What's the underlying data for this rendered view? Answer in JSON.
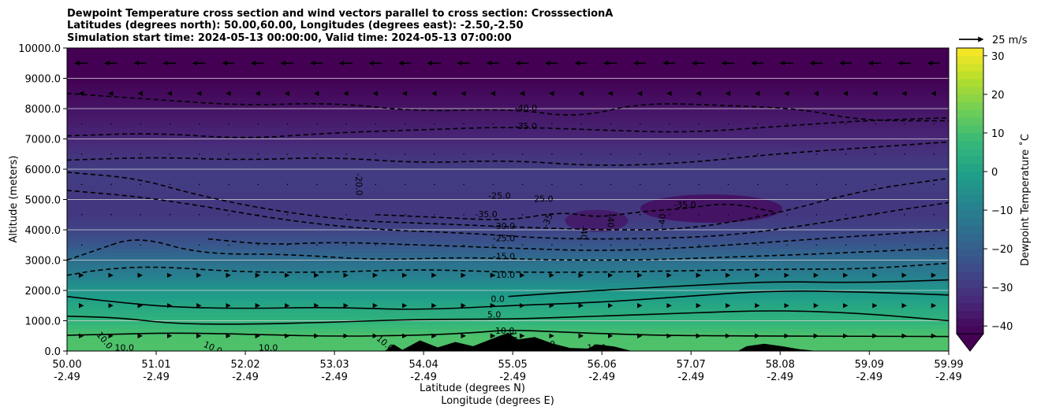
{
  "chart_data": {
    "type": "heatmap",
    "title_lines": [
      "Dewpoint Temperature cross section and wind vectors parallel to cross section: CrosssectionA",
      "Latitudes (degrees north): 50.00,60.00, Longitudes (degrees east): -2.50,-2.50",
      "Simulation start time: 2024-05-13 00:00:00, Valid time: 2024-05-13 07:00:00"
    ],
    "xlabel": "Latitude (degrees N)",
    "xlabel2": "Longitude (degrees E)",
    "ylabel": "Altitude (meters)",
    "xlim": [
      50.0,
      59.99
    ],
    "ylim": [
      0,
      10000
    ],
    "x_ticks": [
      {
        "lat": "50.00",
        "lon": "-2.49",
        "value": 50.0
      },
      {
        "lat": "51.01",
        "lon": "-2.49",
        "value": 51.01
      },
      {
        "lat": "52.02",
        "lon": "-2.49",
        "value": 52.02
      },
      {
        "lat": "53.03",
        "lon": "-2.49",
        "value": 53.03
      },
      {
        "lat": "54.04",
        "lon": "-2.49",
        "value": 54.04
      },
      {
        "lat": "55.05",
        "lon": "-2.49",
        "value": 55.05
      },
      {
        "lat": "56.06",
        "lon": "-2.49",
        "value": 56.06
      },
      {
        "lat": "57.07",
        "lon": "-2.49",
        "value": 57.07
      },
      {
        "lat": "58.08",
        "lon": "-2.49",
        "value": 58.08
      },
      {
        "lat": "59.09",
        "lon": "-2.49",
        "value": 59.09
      },
      {
        "lat": "59.99",
        "lon": "-2.49",
        "value": 59.99
      }
    ],
    "y_ticks": [
      {
        "value": 0,
        "label": "0.0"
      },
      {
        "value": 1000,
        "label": "1000.0"
      },
      {
        "value": 2000,
        "label": "2000.0"
      },
      {
        "value": 3000,
        "label": "3000.0"
      },
      {
        "value": 4000,
        "label": "4000.0"
      },
      {
        "value": 5000,
        "label": "5000.0"
      },
      {
        "value": 6000,
        "label": "6000.0"
      },
      {
        "value": 7000,
        "label": "7000.0"
      },
      {
        "value": 8000,
        "label": "8000.0"
      },
      {
        "value": 9000,
        "label": "9000.0"
      },
      {
        "value": 10000,
        "label": "10000.0"
      }
    ],
    "grid": "horizontal",
    "colorbar": {
      "label": "Dewpoint Temperature ˚C",
      "range": [
        -42,
        32
      ],
      "extend": "min",
      "colormap": "viridis",
      "ticks": [
        {
          "value": -40,
          "label": "−40"
        },
        {
          "value": -30,
          "label": "−30"
        },
        {
          "value": -20,
          "label": "−20"
        },
        {
          "value": -10,
          "label": "−10"
        },
        {
          "value": 0,
          "label": "0"
        },
        {
          "value": 10,
          "label": "10"
        },
        {
          "value": 20,
          "label": "20"
        },
        {
          "value": 30,
          "label": "30"
        }
      ]
    },
    "quiver_key": {
      "label": "25 m/s",
      "speed": 25
    },
    "field_profile": {
      "altitudes": [
        0,
        500,
        1000,
        1500,
        2000,
        2500,
        3000,
        3500,
        4000,
        4500,
        5000,
        5500,
        6000,
        6500,
        7000,
        7500,
        8000,
        8500,
        9000,
        9500,
        10000
      ],
      "dewpoint": [
        11,
        11,
        6,
        2,
        -3,
        -10,
        -15,
        -22,
        -27,
        -30,
        -30,
        -29,
        -29,
        -31,
        -34,
        -36,
        -38,
        -40,
        -42,
        -42,
        -42
      ]
    },
    "contours": [
      {
        "level": 10,
        "style": "solid",
        "points": [
          [
            50.0,
            520
          ],
          [
            50.6,
            560
          ],
          [
            51.2,
            600
          ],
          [
            52.0,
            560
          ],
          [
            53.0,
            480
          ],
          [
            54.0,
            520
          ],
          [
            54.6,
            600
          ],
          [
            55.0,
            700
          ],
          [
            55.5,
            640
          ],
          [
            56.2,
            560
          ],
          [
            57.0,
            500
          ],
          [
            59.99,
            480
          ]
        ]
      },
      {
        "level": 5,
        "style": "solid",
        "points": [
          [
            50.0,
            1150
          ],
          [
            50.6,
            1100
          ],
          [
            51.2,
            900
          ],
          [
            52.0,
            880
          ],
          [
            53.0,
            950
          ],
          [
            54.0,
            1050
          ],
          [
            55.0,
            1050
          ],
          [
            56.0,
            1150
          ],
          [
            57.0,
            1250
          ],
          [
            58.0,
            1350
          ],
          [
            59.0,
            1250
          ],
          [
            59.99,
            1000
          ]
        ]
      },
      {
        "level": 0,
        "style": "solid",
        "points": [
          [
            50.0,
            1800
          ],
          [
            50.6,
            1600
          ],
          [
            51.2,
            1450
          ],
          [
            52.0,
            1400
          ],
          [
            53.0,
            1450
          ],
          [
            54.0,
            1350
          ],
          [
            55.0,
            1500
          ],
          [
            56.0,
            1600
          ],
          [
            57.0,
            1800
          ],
          [
            58.0,
            2000
          ],
          [
            59.0,
            1950
          ],
          [
            59.99,
            1850
          ]
        ]
      },
      {
        "level": -5,
        "style": "solid",
        "points": [
          [
            55.0,
            1800
          ],
          [
            56.0,
            2000
          ],
          [
            57.0,
            2150
          ],
          [
            58.0,
            2300
          ],
          [
            59.0,
            2250
          ],
          [
            59.99,
            2350
          ]
        ]
      },
      {
        "level": -10,
        "style": "dashed",
        "points": [
          [
            50.0,
            2500
          ],
          [
            50.4,
            2700
          ],
          [
            51.0,
            2800
          ],
          [
            52.0,
            2600
          ],
          [
            53.0,
            2600
          ],
          [
            54.0,
            2700
          ],
          [
            55.0,
            2600
          ],
          [
            56.0,
            2600
          ],
          [
            57.0,
            2650
          ],
          [
            58.0,
            2700
          ],
          [
            59.0,
            2700
          ],
          [
            59.99,
            2900
          ]
        ]
      },
      {
        "level": -15,
        "style": "dashed",
        "points": [
          [
            50.0,
            3000
          ],
          [
            50.3,
            3300
          ],
          [
            50.8,
            3800
          ],
          [
            51.5,
            3200
          ],
          [
            52.5,
            3200
          ],
          [
            53.5,
            3000
          ],
          [
            54.5,
            3100
          ],
          [
            55.5,
            3000
          ],
          [
            56.5,
            3000
          ],
          [
            57.5,
            3100
          ],
          [
            58.5,
            3200
          ],
          [
            59.99,
            3400
          ]
        ]
      },
      {
        "level": -20,
        "style": "dashed",
        "points": [
          [
            51.6,
            3700
          ],
          [
            52.3,
            3500
          ],
          [
            53.0,
            3600
          ],
          [
            54.0,
            3500
          ],
          [
            55.0,
            3400
          ],
          [
            56.0,
            3300
          ],
          [
            57.0,
            3400
          ],
          [
            58.0,
            3600
          ],
          [
            59.0,
            3800
          ],
          [
            59.99,
            4000
          ]
        ]
      },
      {
        "level": -25,
        "style": "dashed",
        "points": [
          [
            50.0,
            5300
          ],
          [
            50.8,
            5100
          ],
          [
            51.5,
            4800
          ],
          [
            52.5,
            4300
          ],
          [
            53.5,
            4000
          ],
          [
            54.5,
            3900
          ],
          [
            55.5,
            3700
          ],
          [
            56.5,
            3700
          ],
          [
            57.5,
            3800
          ],
          [
            58.5,
            4200
          ],
          [
            59.3,
            4600
          ],
          [
            59.99,
            4900
          ]
        ]
      },
      {
        "level": -30,
        "style": "dashed",
        "points": [
          [
            50.0,
            5900
          ],
          [
            50.8,
            5700
          ],
          [
            51.4,
            5200
          ],
          [
            52.2,
            4700
          ],
          [
            53.2,
            4300
          ],
          [
            54.2,
            4200
          ],
          [
            55.0,
            4100
          ],
          [
            56.0,
            4000
          ],
          [
            57.0,
            4000
          ],
          [
            58.0,
            4500
          ],
          [
            59.0,
            5300
          ],
          [
            59.99,
            5700
          ]
        ]
      },
      {
        "level": -35,
        "style": "dashed",
        "points": [
          [
            53.5,
            4500
          ],
          [
            54.3,
            4400
          ],
          [
            55.0,
            4300
          ],
          [
            55.6,
            4600
          ],
          [
            56.0,
            4400
          ],
          [
            56.5,
            4600
          ],
          [
            57.0,
            4700
          ],
          [
            57.5,
            4900
          ],
          [
            58.0,
            4600
          ]
        ]
      },
      {
        "level": -30,
        "style": "dashed",
        "points": [
          [
            50.0,
            6300
          ],
          [
            51.0,
            6400
          ],
          [
            52.0,
            6300
          ],
          [
            53.0,
            6400
          ],
          [
            54.0,
            6200
          ],
          [
            55.0,
            6300
          ],
          [
            56.0,
            6100
          ],
          [
            57.0,
            6200
          ],
          [
            58.0,
            6500
          ],
          [
            59.0,
            6700
          ],
          [
            59.99,
            6900
          ]
        ]
      },
      {
        "level": -35,
        "style": "dashed",
        "points": [
          [
            50.0,
            7100
          ],
          [
            51.0,
            7200
          ],
          [
            52.0,
            7000
          ],
          [
            53.0,
            7200
          ],
          [
            54.0,
            7300
          ],
          [
            55.0,
            7400
          ],
          [
            56.0,
            7300
          ],
          [
            57.0,
            7200
          ],
          [
            58.0,
            7400
          ],
          [
            59.0,
            7600
          ],
          [
            59.99,
            7700
          ]
        ]
      },
      {
        "level": -40,
        "style": "dashed",
        "points": [
          [
            50.0,
            8500
          ],
          [
            51.0,
            8300
          ],
          [
            52.0,
            8100
          ],
          [
            53.0,
            8200
          ],
          [
            54.0,
            7900
          ],
          [
            55.0,
            8000
          ],
          [
            55.8,
            7700
          ],
          [
            56.5,
            8200
          ],
          [
            57.5,
            8100
          ],
          [
            58.3,
            8000
          ],
          [
            59.0,
            7600
          ],
          [
            59.99,
            7600
          ]
        ]
      }
    ],
    "contour_labels": [
      {
        "text": "10.0",
        "x": 50.42,
        "y": 340,
        "rotate": 50
      },
      {
        "text": "10.0",
        "x": 50.65,
        "y": 90,
        "rotate": 0
      },
      {
        "text": "10.0",
        "x": 51.65,
        "y": 90,
        "rotate": 25
      },
      {
        "text": "10.0",
        "x": 52.28,
        "y": 90,
        "rotate": 0
      },
      {
        "text": "10.0",
        "x": 53.6,
        "y": 240,
        "rotate": 40
      },
      {
        "text": "10.0",
        "x": 54.96,
        "y": 650,
        "rotate": 0
      },
      {
        "text": "10.0",
        "x": 55.06,
        "y": 340,
        "rotate": 80
      },
      {
        "text": "10.0",
        "x": 56.0,
        "y": 90,
        "rotate": 0
      },
      {
        "text": "0",
        "x": 55.5,
        "y": 210,
        "rotate": 0
      },
      {
        "text": "5.0",
        "x": 54.84,
        "y": 1180,
        "rotate": 0
      },
      {
        "text": "0.0",
        "x": 54.88,
        "y": 1700,
        "rotate": 0
      },
      {
        "text": "-10.0",
        "x": 54.95,
        "y": 2500,
        "rotate": 0
      },
      {
        "text": "-15.0",
        "x": 54.95,
        "y": 3100,
        "rotate": 0
      },
      {
        "text": "-25.0",
        "x": 54.95,
        "y": 3700,
        "rotate": 0
      },
      {
        "text": "-30.0",
        "x": 54.95,
        "y": 4100,
        "rotate": 0
      },
      {
        "text": "-35.0",
        "x": 54.75,
        "y": 4500,
        "rotate": 0
      },
      {
        "text": "-35",
        "x": 55.45,
        "y": 4300,
        "rotate": -70
      },
      {
        "text": "-25.0",
        "x": 54.9,
        "y": 5100,
        "rotate": 0
      },
      {
        "text": "25.0",
        "x": 55.4,
        "y": 5000,
        "rotate": 0
      },
      {
        "text": "-40",
        "x": 55.85,
        "y": 3900,
        "rotate": 90
      },
      {
        "text": "-40",
        "x": 56.15,
        "y": 4300,
        "rotate": 90
      },
      {
        "text": "-40",
        "x": 56.75,
        "y": 4300,
        "rotate": -85
      },
      {
        "text": "-35.0",
        "x": 57.0,
        "y": 4800,
        "rotate": 0
      },
      {
        "text": "-20.0",
        "x": 53.3,
        "y": 5500,
        "rotate": 88
      },
      {
        "text": "-35.0",
        "x": 55.2,
        "y": 7400,
        "rotate": 0
      },
      {
        "text": "-40.0",
        "x": 55.2,
        "y": 8000,
        "rotate": 0
      }
    ],
    "terrain": [
      [
        53.6,
        0
      ],
      [
        53.7,
        220
      ],
      [
        53.8,
        40
      ],
      [
        54.0,
        350
      ],
      [
        54.2,
        120
      ],
      [
        54.4,
        300
      ],
      [
        54.6,
        160
      ],
      [
        54.9,
        500
      ],
      [
        55.0,
        600
      ],
      [
        55.1,
        380
      ],
      [
        55.3,
        460
      ],
      [
        55.5,
        250
      ],
      [
        55.7,
        100
      ],
      [
        55.9,
        80
      ],
      [
        56.0,
        220
      ],
      [
        56.2,
        150
      ],
      [
        56.4,
        0
      ],
      [
        57.6,
        0
      ],
      [
        57.7,
        160
      ],
      [
        57.9,
        240
      ],
      [
        58.1,
        160
      ],
      [
        58.3,
        60
      ],
      [
        58.5,
        0
      ]
    ],
    "wind_pattern": {
      "upper_level_flow": "strong westward (right-to-left) near 9000-10000 m",
      "low_level_flow": "weak eastward below ~3000 m"
    }
  }
}
